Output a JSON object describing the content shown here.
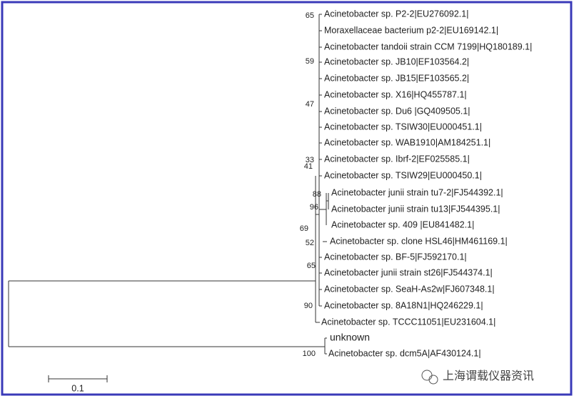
{
  "leaves": [
    "Acinetobacter sp. P2-2|EU276092.1|",
    "Moraxellaceae bacterium p2-2|EU169142.1|",
    "Acinetobacter tandoii strain CCM 7199|HQ180189.1|",
    "Acinetobacter sp. JB10|EF103564.2|",
    "Acinetobacter sp. JB15|EF103565.2|",
    "Acinetobacter sp. X16|HQ455787.1|",
    "Acinetobacter sp. Du6 |GQ409505.1|",
    "Acinetobacter sp. TSIW30|EU000451.1|",
    "Acinetobacter sp. WAB1910|AM184251.1|",
    "Acinetobacter sp. Ibrf-2|EF025585.1|",
    "Acinetobacter sp. TSIW29|EU000450.1|",
    "Acinetobacter junii strain tu7-2|FJ544392.1|",
    "Acinetobacter junii strain tu13|FJ544395.1|",
    "Acinetobacter sp. 409 |EU841482.1|",
    "Acinetobacter sp. clone HSL46|HM461169.1|",
    "Acinetobacter sp. BF-5|FJ592170.1|",
    "Acinetobacter junii strain st26|FJ544374.1|",
    "Acinetobacter sp. SeaH-As2w|FJ607348.1|",
    "Acinetobacter sp. 8A18N1|HQ246229.1|",
    "Acinetobacter sp. TCCC11051|EU231604.1|",
    "unknown",
    "Acinetobacter sp. dcm5A|AF430124.1|"
  ],
  "bootstrap": [
    "65",
    "59",
    "47",
    "33",
    "41",
    "88",
    "96",
    "69",
    "52",
    "65",
    "90",
    "100"
  ],
  "scale_bar": {
    "label": "0.1"
  },
  "watermark": "上海谓载仪器资讯"
}
